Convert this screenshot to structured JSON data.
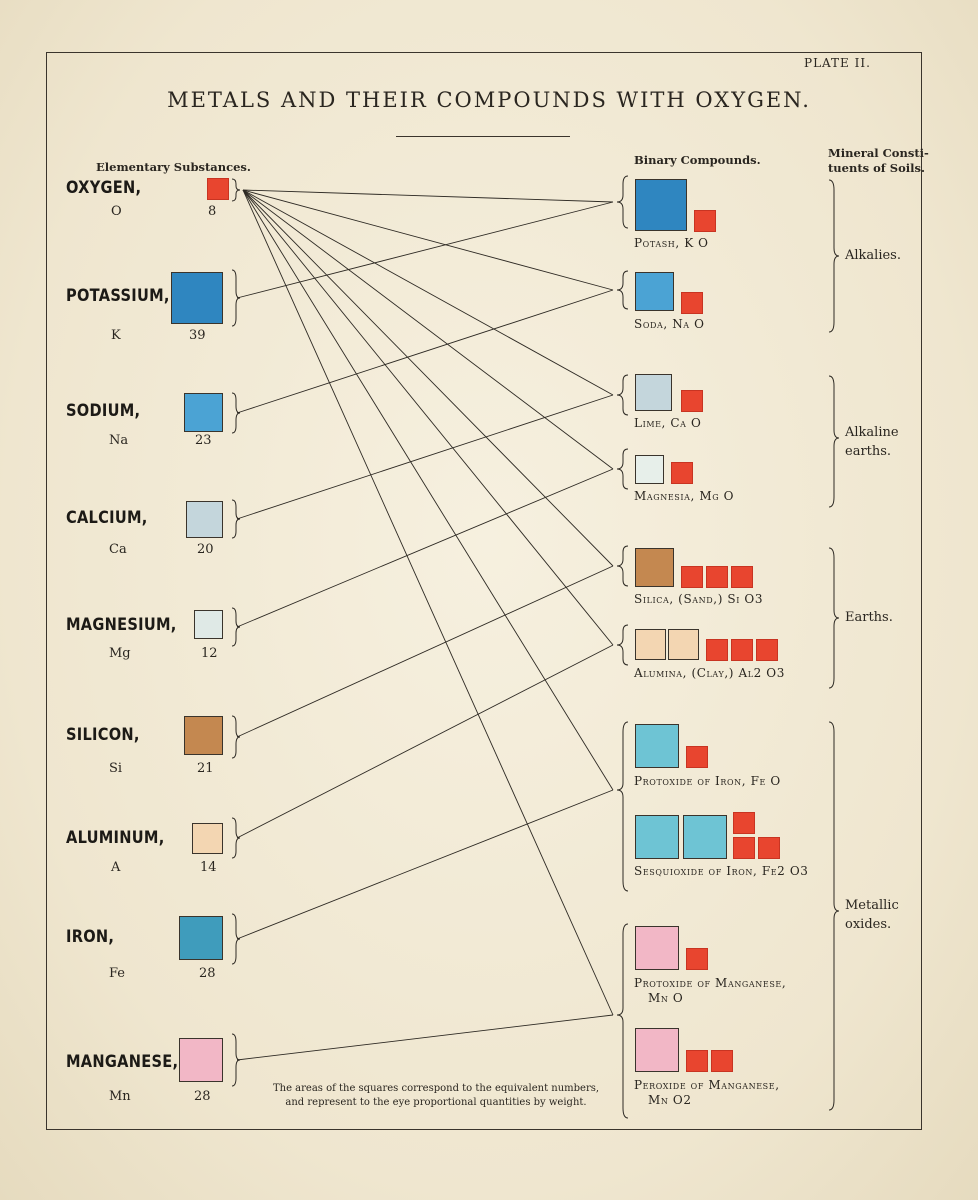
{
  "plate_label": "PLATE II.",
  "title": "METALS AND THEIR COMPOUNDS WITH OXYGEN.",
  "headers": {
    "elementary": "Elementary Substances.",
    "binary": "Binary Compounds.",
    "mineral_line1": "Mineral Consti-",
    "mineral_line2": "tuents of Soils."
  },
  "elements": [
    {
      "name": "OXYGEN,",
      "symbol": "O",
      "number": "8",
      "color": "#e8452f"
    },
    {
      "name": "POTASSIUM,",
      "symbol": "K",
      "number": "39",
      "color": "#2f86c0"
    },
    {
      "name": "SODIUM,",
      "symbol": "Na",
      "number": "23",
      "color": "#4ba3d4"
    },
    {
      "name": "CALCIUM,",
      "symbol": "Ca",
      "number": "20",
      "color": "#c4d6dc"
    },
    {
      "name": "MAGNESIUM,",
      "symbol": "Mg",
      "number": "12",
      "color": "#dfe9e6"
    },
    {
      "name": "SILICON,",
      "symbol": "Si",
      "number": "21",
      "color": "#c48850"
    },
    {
      "name": "ALUMINUM,",
      "symbol": "A",
      "number": "14",
      "color": "#f3d6b2"
    },
    {
      "name": "IRON,",
      "symbol": "Fe",
      "number": "28",
      "color": "#3f9cbc"
    },
    {
      "name": "MANGANESE,",
      "symbol": "Mn",
      "number": "28",
      "color": "#f2b7c6"
    }
  ],
  "compounds": [
    {
      "label": "Potash, K O",
      "color": "#2f86c0"
    },
    {
      "label": "Soda, Na O",
      "color": "#4ba3d4"
    },
    {
      "label": "Lime, Ca O",
      "color": "#c4d6dc"
    },
    {
      "label": "Magnesia, Mg O",
      "color": "#e7efea"
    },
    {
      "label": "Silica, (Sand,) Si O3",
      "color": "#c48850"
    },
    {
      "label": "Alumina, (Clay,) Al2 O3",
      "color": "#f3d6b2"
    },
    {
      "label": "Protoxide of Iron, Fe O",
      "color": "#6ec4d4"
    },
    {
      "label": "Sesquioxide of Iron, Fe2 O3",
      "color": "#6ec4d4"
    },
    {
      "label_line1": "Protoxide of Manganese,",
      "label_line2": "Mn O",
      "color": "#f2b7c6"
    },
    {
      "label_line1": "Peroxide of Manganese,",
      "label_line2": "Mn O2",
      "color": "#f2b7c6"
    }
  ],
  "groups": [
    {
      "line1": "Alkalies.",
      "line2": ""
    },
    {
      "line1": "Alkaline",
      "line2": "earths."
    },
    {
      "line1": "Earths.",
      "line2": ""
    },
    {
      "line1": "Metallic",
      "line2": "oxides."
    }
  ],
  "note": "The areas of the squares correspond to the equivalent numbers, and represent to the eye proportional quantities by weight.",
  "oxygen_color": "#e8452f"
}
